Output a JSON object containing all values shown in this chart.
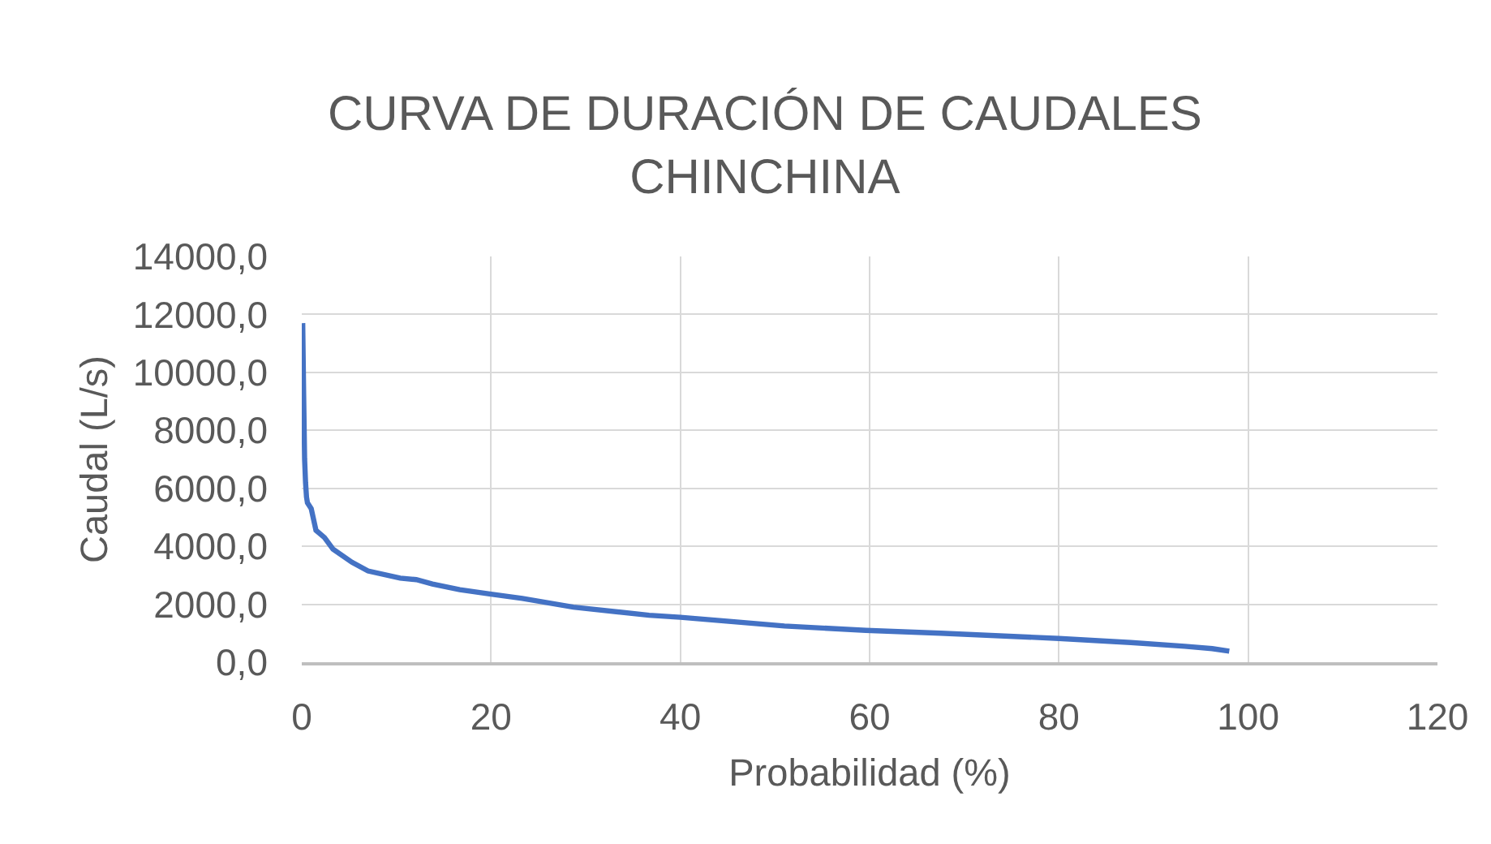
{
  "chart_data": {
    "type": "line",
    "title": "CURVA DE DURACIÓN DE CAUDALES\nCHINCHINA",
    "xlabel": "Probabilidad (%)",
    "ylabel": "Caudal (L/s)",
    "series": [
      {
        "color": "#4472c4",
        "x": [
          0.1,
          0.2,
          0.3,
          0.4,
          0.5,
          0.6,
          1.0,
          1.5,
          2.4,
          3.3,
          5.3,
          7.0,
          10.4,
          12.1,
          13.8,
          16.7,
          20.0,
          23.3,
          28.7,
          36.7,
          40.0,
          51.0,
          59.6,
          67.5,
          80.0,
          87.6,
          93.3,
          96.2,
          98.0
        ],
        "values": [
          11700,
          9200,
          7000,
          6200,
          5700,
          5500,
          5300,
          4550,
          4300,
          3900,
          3450,
          3150,
          2900,
          2850,
          2700,
          2500,
          2350,
          2200,
          1900,
          1620,
          1550,
          1250,
          1100,
          1000,
          820,
          680,
          550,
          470,
          380
        ]
      }
    ],
    "xlim": [
      0,
      120
    ],
    "xticks": [
      0,
      20,
      40,
      60,
      80,
      100,
      120
    ],
    "ylim": [
      0,
      14000
    ],
    "yticks": [
      {
        "value": 0,
        "label": "0,0"
      },
      {
        "value": 2000,
        "label": "2000,0"
      },
      {
        "value": 4000,
        "label": "4000,0"
      },
      {
        "value": 6000,
        "label": "6000,0"
      },
      {
        "value": 8000,
        "label": "8000,0"
      },
      {
        "value": 10000,
        "label": "10000,0"
      },
      {
        "value": 12000,
        "label": "12000,0"
      },
      {
        "value": 14000,
        "label": "14000,0"
      }
    ],
    "grid": true,
    "marker": "none",
    "line_style": "solid"
  }
}
